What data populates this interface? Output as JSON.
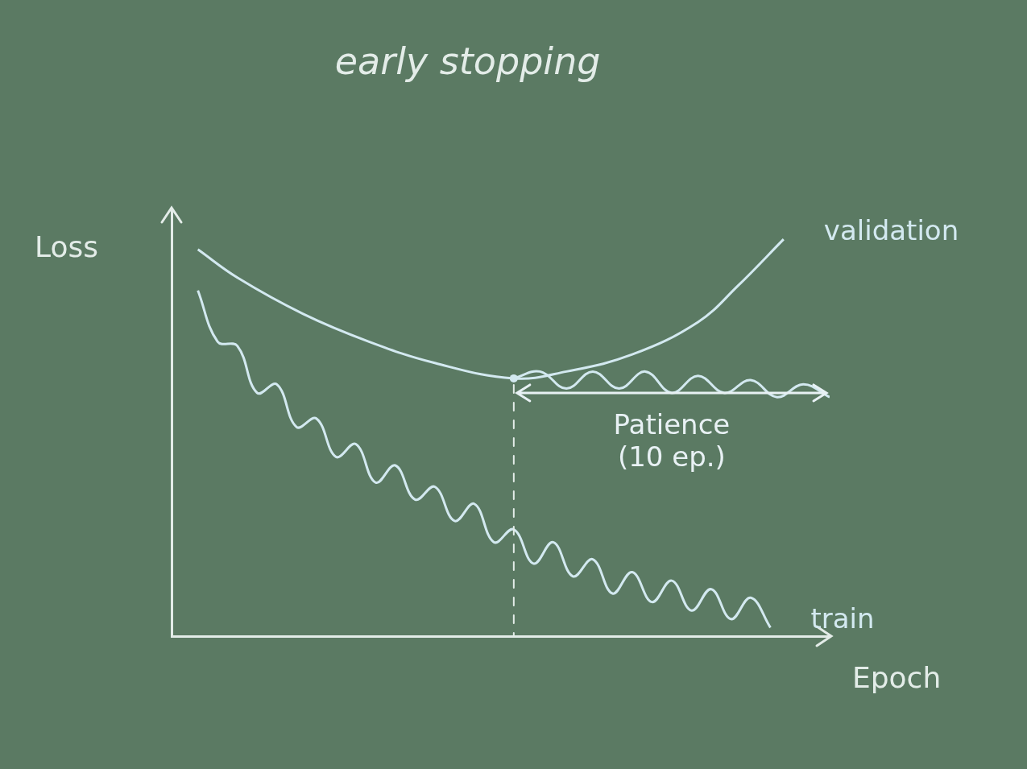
{
  "chart_data": {
    "type": "line",
    "title": "early stopping",
    "x_label": "Epoch",
    "y_label": "Loss",
    "xlim": [
      0,
      100
    ],
    "ylim": [
      0,
      100
    ],
    "tick_labels": false,
    "grid": false,
    "series": [
      {
        "name": "validation",
        "color": "#d3e9f0",
        "x": [
          4,
          10,
          20,
          30,
          40,
          52,
          60,
          70,
          80,
          86,
          93
        ],
        "values": [
          90.6,
          84,
          75.5,
          69,
          64,
          60.4,
          62,
          66,
          73.6,
          82,
          93
        ]
      },
      {
        "color": "#d3e9f0",
        "x": [
          52,
          56,
          60,
          64,
          68,
          72,
          76,
          80,
          84,
          88,
          92,
          96,
          100
        ],
        "values": [
          60.4,
          62,
          58,
          62,
          58,
          62,
          57,
          61,
          57,
          60,
          56,
          59,
          56
        ]
      },
      {
        "name": "train",
        "color": "#d3e9f0",
        "x": [
          4,
          7,
          10,
          13,
          16,
          19,
          22,
          25,
          28,
          31,
          34,
          37,
          40,
          43,
          46,
          49,
          52,
          55,
          58,
          61,
          64,
          67,
          70,
          73,
          76,
          79,
          82,
          85,
          88,
          91
        ],
        "values": [
          81,
          69,
          68,
          57,
          59,
          49,
          51,
          42,
          45,
          36,
          40,
          32,
          35,
          27,
          31,
          22,
          25,
          17,
          22,
          14,
          18,
          10,
          15,
          8,
          13,
          6,
          11,
          4,
          9,
          2
        ]
      }
    ],
    "best_epoch": 52,
    "annotations": [
      {
        "text": [
          "Patience",
          "(10 ep.)"
        ],
        "x_range": [
          52,
          100
        ],
        "y": 57
      }
    ]
  }
}
